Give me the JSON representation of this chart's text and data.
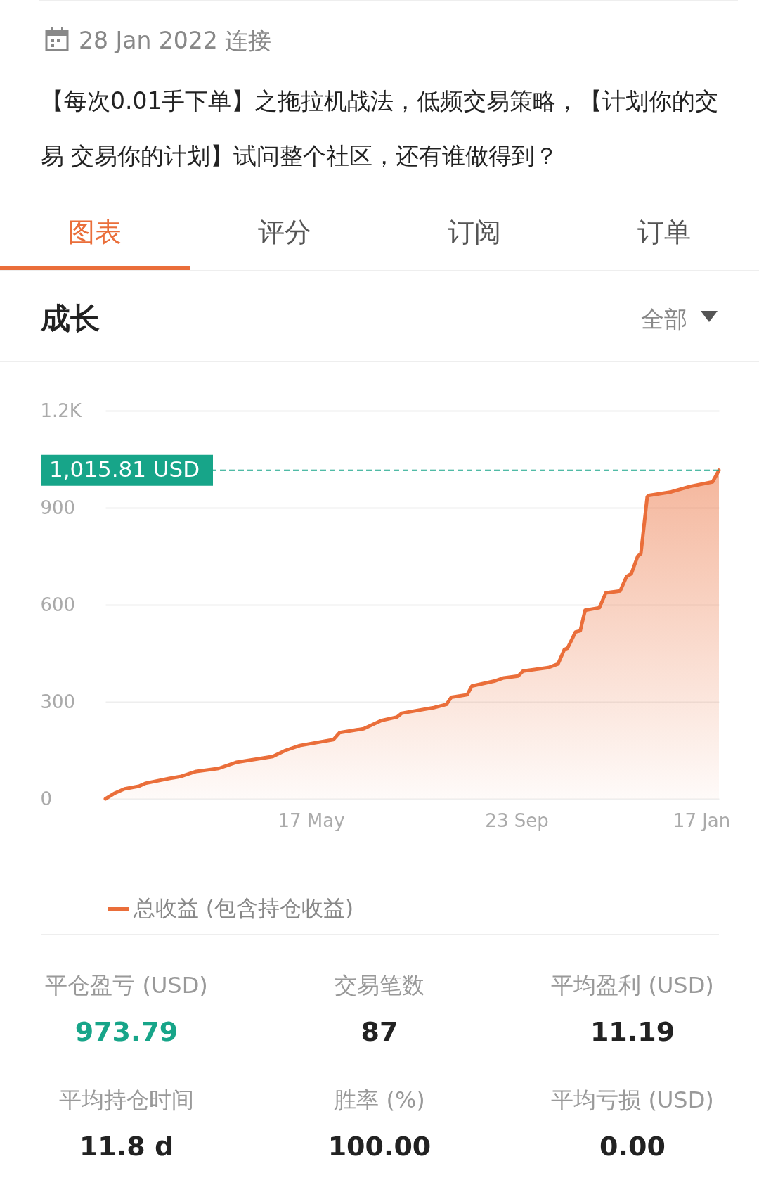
{
  "chart_data": {
    "type": "area",
    "title": "成长",
    "subtitle": "【每次0.01手下单】之拖拉机战法，低频交易策略，【计划你的交易 交易你的计划】试问整个社区，还有谁做得到？",
    "annotations": [
      "28 Jan 2022 连接",
      "图表",
      "评分",
      "订阅",
      "订单",
      "全部",
      "平仓盈亏 (USD)",
      "973.79",
      "交易笔数",
      "87",
      "平均盈利 (USD)",
      "11.19",
      "平均持仓时间",
      "11.8 d",
      "胜率 (%)",
      "100.00",
      "平均亏损 (USD)",
      "0.00"
    ],
    "x": [
      "2021-01-08",
      "2021-01-14",
      "2021-01-20",
      "2021-01-29",
      "2021-02-02",
      "2021-02-17",
      "2021-02-24",
      "2021-03-06",
      "2021-03-20",
      "2021-03-31",
      "2021-04-23",
      "2021-05-01",
      "2021-05-10",
      "2021-05-31",
      "2021-06-04",
      "2021-06-19",
      "2021-06-30",
      "2021-07-10",
      "2021-07-13",
      "2021-08-02",
      "2021-08-10",
      "2021-08-13",
      "2021-08-23",
      "2021-08-26",
      "2021-09-09",
      "2021-09-15",
      "2021-09-24",
      "2021-09-27",
      "2021-10-13",
      "2021-10-19",
      "2021-10-23",
      "2021-10-25",
      "2021-10-30",
      "2021-11-02",
      "2021-11-05",
      "2021-11-14",
      "2021-11-18",
      "2021-11-27",
      "2021-12-01",
      "2021-12-04",
      "2021-12-08",
      "2021-12-10",
      "2021-12-14",
      "2021-12-15",
      "2021-12-29",
      "2022-01-10",
      "2022-01-24",
      "2022-01-28"
    ],
    "series": [
      {
        "name": "总收益 (包含持仓收益)",
        "color": "#ea6e3a",
        "values": [
          0,
          18,
          31,
          39,
          48,
          63,
          69,
          85,
          94,
          113,
          131,
          150,
          165,
          183,
          205,
          217,
          242,
          253,
          265,
          282,
          292,
          314,
          322,
          349,
          364,
          374,
          380,
          395,
          406,
          417,
          462,
          466,
          516,
          520,
          583,
          591,
          637,
          643,
          687,
          696,
          750,
          758,
          934,
          938,
          949,
          966,
          980,
          1015.81
        ]
      }
    ],
    "xlim": [
      "2021-01-08",
      "2022-01-28"
    ],
    "xticks": [
      {
        "value": "2021-05-17",
        "label": "17 May"
      },
      {
        "value": "2021-09-23",
        "label": "23 Sep"
      },
      {
        "value": "2022-01-17",
        "label": "17 Jan"
      }
    ],
    "ylim": [
      0,
      1200
    ],
    "yticks": [
      0,
      300,
      600,
      900,
      {
        "value": 1200,
        "label": "1.2K"
      }
    ],
    "grid": "y",
    "legend": "bottom",
    "marker": "none",
    "line_style": "solid",
    "ref_lines": [
      {
        "axis": "y",
        "value": 1015.81,
        "label": "1,015.81 USD",
        "color": "#17a589",
        "line_style": "dashed"
      }
    ]
  }
}
